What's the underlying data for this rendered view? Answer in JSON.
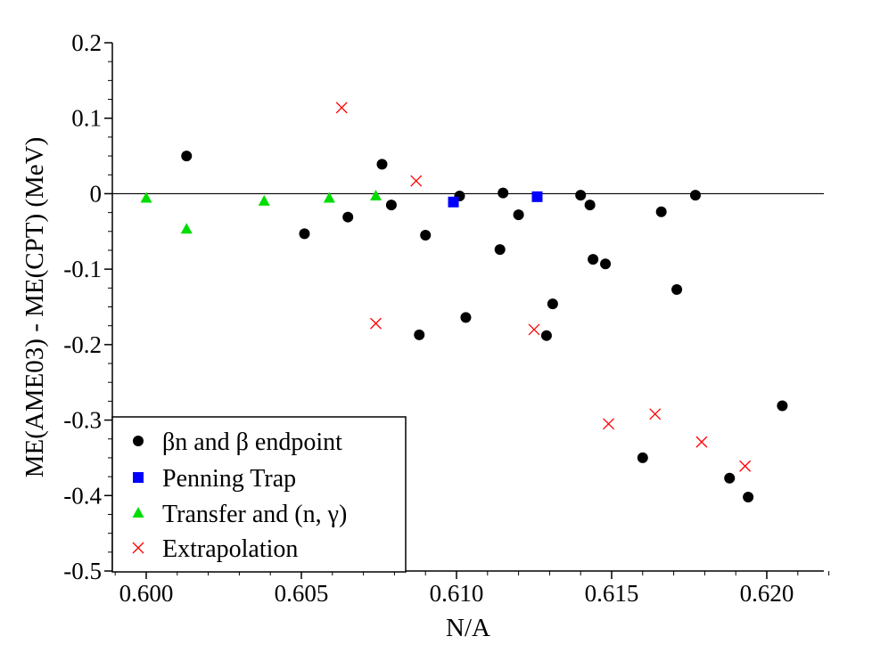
{
  "chart_data": {
    "type": "scatter",
    "title": "",
    "xlabel": "N/A",
    "ylabel": "ME(AME03) - ME(CPT) (MeV)",
    "xlim": [
      0.599,
      0.622
    ],
    "ylim": [
      -0.5,
      0.2
    ],
    "xticks": [
      "0.600",
      "0.605",
      "0.610",
      "0.615",
      "0.620"
    ],
    "yticks": [
      "0.2",
      "0.1",
      "0",
      "-0.1",
      "-0.2",
      "-0.3",
      "-0.4",
      "-0.5"
    ],
    "reference_line_y": 0,
    "legend_position": "bottom-left",
    "series": [
      {
        "name": "βn and β endpoint",
        "marker": "circle",
        "color": "#000000",
        "points": [
          [
            0.6013,
            0.05
          ],
          [
            0.6051,
            -0.053
          ],
          [
            0.6065,
            -0.031
          ],
          [
            0.6076,
            0.039
          ],
          [
            0.6079,
            -0.015
          ],
          [
            0.6088,
            -0.187
          ],
          [
            0.609,
            -0.055
          ],
          [
            0.6101,
            -0.003
          ],
          [
            0.6103,
            -0.164
          ],
          [
            0.6114,
            -0.074
          ],
          [
            0.6115,
            0.001
          ],
          [
            0.612,
            -0.028
          ],
          [
            0.6129,
            -0.188
          ],
          [
            0.6131,
            -0.146
          ],
          [
            0.614,
            -0.002
          ],
          [
            0.6143,
            -0.015
          ],
          [
            0.6144,
            -0.087
          ],
          [
            0.6148,
            -0.093
          ],
          [
            0.616,
            -0.35
          ],
          [
            0.6166,
            -0.024
          ],
          [
            0.6171,
            -0.127
          ],
          [
            0.6177,
            -0.002
          ],
          [
            0.6188,
            -0.377
          ],
          [
            0.6194,
            -0.402
          ],
          [
            0.6205,
            -0.281
          ]
        ]
      },
      {
        "name": "Penning Trap",
        "marker": "square",
        "color": "#0000ff",
        "points": [
          [
            0.6099,
            -0.011
          ],
          [
            0.6126,
            -0.004
          ]
        ]
      },
      {
        "name": "Transfer and (n, γ)",
        "marker": "triangle",
        "color": "#00dd00",
        "points": [
          [
            0.6,
            -0.006
          ],
          [
            0.6013,
            -0.047
          ],
          [
            0.6038,
            -0.01
          ],
          [
            0.6059,
            -0.006
          ],
          [
            0.6074,
            -0.003
          ]
        ]
      },
      {
        "name": "Extrapolation",
        "marker": "x",
        "color": "#ff0000",
        "points": [
          [
            0.6063,
            0.114
          ],
          [
            0.6074,
            -0.172
          ],
          [
            0.6087,
            0.017
          ],
          [
            0.6125,
            -0.18
          ],
          [
            0.6149,
            -0.305
          ],
          [
            0.6164,
            -0.292
          ],
          [
            0.6179,
            -0.329
          ],
          [
            0.6193,
            -0.361
          ]
        ]
      }
    ]
  }
}
